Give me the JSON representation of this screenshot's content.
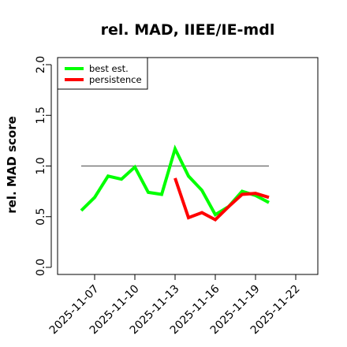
{
  "chart_data": {
    "type": "line",
    "title": "rel. MAD, IIEE/IE-mdl",
    "xlabel": "",
    "ylabel": "rel. MAD score",
    "ylim": [
      0,
      2.1
    ],
    "yticks": [
      "0.0",
      "0.5",
      "1.0",
      "1.5",
      "2.0"
    ],
    "xticks": [
      "2025-11-07",
      "2025-11-10",
      "2025-11-13",
      "2025-11-16",
      "2025-11-19",
      "2025-11-22"
    ],
    "reference_line": {
      "y": 1.0,
      "x_start": "2025-11-06",
      "x_end": "2025-11-20",
      "color": "#666666"
    },
    "legend": {
      "placement": "top-left"
    },
    "series": [
      {
        "name": "best est.",
        "color": "#00ff00",
        "x": [
          "2025-11-06",
          "2025-11-07",
          "2025-11-08",
          "2025-11-09",
          "2025-11-10",
          "2025-11-11",
          "2025-11-12",
          "2025-11-13",
          "2025-11-14",
          "2025-11-15",
          "2025-11-16",
          "2025-11-17",
          "2025-11-18",
          "2025-11-19",
          "2025-11-20"
        ],
        "values": [
          0.56,
          0.69,
          0.9,
          0.87,
          0.99,
          0.74,
          0.72,
          1.17,
          0.9,
          0.76,
          0.52,
          0.6,
          0.75,
          0.71,
          0.64
        ]
      },
      {
        "name": "persistence",
        "color": "#ff0000",
        "x": [
          "2025-11-13",
          "2025-11-14",
          "2025-11-15",
          "2025-11-16",
          "2025-11-17",
          "2025-11-18",
          "2025-11-19",
          "2025-11-20"
        ],
        "values": [
          0.88,
          0.49,
          0.54,
          0.47,
          0.6,
          0.72,
          0.73,
          0.69
        ]
      }
    ]
  }
}
